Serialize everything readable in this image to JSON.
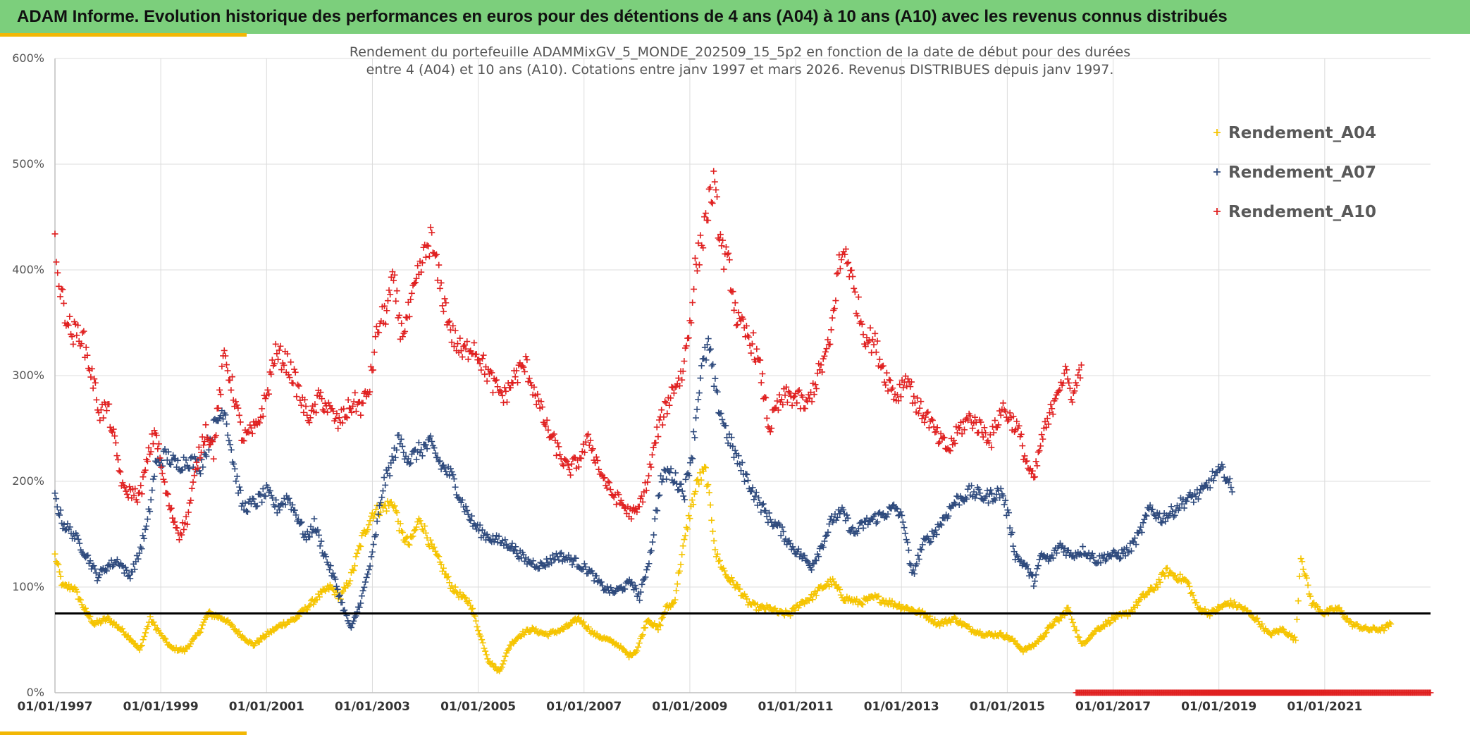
{
  "header": {
    "title": "ADAM Informe. Evolution historique des performances en euros pour des détentions de 4 ans (A04) à 10 ans (A10) avec les revenus connus distribués"
  },
  "colors": {
    "banner": "#7ccf7c",
    "accent": "#f2b705",
    "A04": "#f5c400",
    "A07": "#2e4a7d",
    "A10": "#e02020",
    "reference": "#000000",
    "grid": "#dcdcdc"
  },
  "chart_data": {
    "type": "scatter",
    "title_lines": [
      "Rendement du portefeuille ADAMMixGV_5_MONDE_202509_15_5p2  en fonction de la date de début pour des durées",
      "entre 4 (A04) et 10 ans (A10). Cotations entre janv 1997 et mars 2026. Revenus DISTRIBUES depuis janv 1997."
    ],
    "xlabel": "",
    "ylabel": "",
    "xlim": [
      1997.0,
      2023.0
    ],
    "ylim": [
      0,
      600
    ],
    "yticks": [
      0,
      100,
      200,
      300,
      400,
      500,
      600
    ],
    "ytick_labels": [
      "0%",
      "100%",
      "200%",
      "300%",
      "400%",
      "500%",
      "600%"
    ],
    "xticks": [
      1997,
      1999,
      2001,
      2003,
      2005,
      2007,
      2009,
      2011,
      2013,
      2015,
      2017,
      2019,
      2021
    ],
    "xtick_labels": [
      "01/01/1997",
      "01/01/1999",
      "01/01/2001",
      "01/01/2003",
      "01/01/2005",
      "01/01/2007",
      "01/01/2009",
      "01/01/2011",
      "01/01/2013",
      "01/01/2015",
      "01/01/2017",
      "01/01/2019",
      "01/01/2021"
    ],
    "grid": true,
    "legend_position": "top-right",
    "reference_line": {
      "y": 75
    },
    "series": [
      {
        "name": "Rendement_A04",
        "x": [
          1997.0,
          1997.15,
          1997.35,
          1997.6,
          1997.75,
          1998.0,
          1998.25,
          1998.45,
          1998.6,
          1998.8,
          1999.0,
          1999.2,
          1999.45,
          1999.7,
          1999.9,
          2000.2,
          2000.5,
          2000.75,
          2001.0,
          2001.3,
          2001.55,
          2001.75,
          2002.0,
          2002.2,
          2002.4,
          2002.6,
          2002.8,
          2003.0,
          2003.2,
          2003.4,
          2003.55,
          2003.7,
          2003.9,
          2004.1,
          2004.3,
          2004.5,
          2004.7,
          2004.85,
          2005.0,
          2005.2,
          2005.4,
          2005.6,
          2005.8,
          2006.0,
          2006.3,
          2006.6,
          2006.9,
          2007.2,
          2007.45,
          2007.65,
          2007.85,
          2008.0,
          2008.2,
          2008.4,
          2008.55,
          2008.7,
          2008.85,
          2009.0,
          2009.15,
          2009.3,
          2009.5,
          2009.7,
          2009.9,
          2010.1,
          2010.3,
          2010.5,
          2010.7,
          2010.9,
          2011.1,
          2011.3,
          2011.5,
          2011.7,
          2011.9,
          2012.2,
          2012.5,
          2012.8,
          2013.1,
          2013.4,
          2013.7,
          2014.0,
          2014.3,
          2014.6,
          2014.9,
          2015.1,
          2015.3,
          2015.5,
          2015.7,
          2015.85,
          2016.0,
          2016.15,
          2016.4,
          2016.7,
          2017.0,
          2017.3,
          2017.55,
          2017.8,
          2018.0,
          2018.2,
          2018.4,
          2018.6,
          2018.85,
          2019.0,
          2019.2,
          2019.45,
          2019.7,
          2019.95,
          2020.2,
          2020.45,
          2020.55,
          2020.75,
          2021.0,
          2021.25,
          2021.5,
          2021.8,
          2022.1,
          2022.25
        ],
        "values": [
          130,
          100,
          100,
          75,
          65,
          70,
          60,
          50,
          40,
          70,
          55,
          42,
          40,
          55,
          75,
          70,
          55,
          45,
          55,
          65,
          70,
          80,
          92,
          100,
          90,
          110,
          145,
          170,
          175,
          180,
          150,
          140,
          165,
          140,
          120,
          100,
          90,
          85,
          60,
          30,
          20,
          45,
          55,
          60,
          55,
          60,
          70,
          55,
          50,
          45,
          35,
          40,
          70,
          60,
          80,
          85,
          130,
          170,
          200,
          210,
          130,
          110,
          100,
          85,
          80,
          80,
          75,
          75,
          85,
          90,
          100,
          105,
          90,
          85,
          90,
          85,
          80,
          75,
          65,
          70,
          60,
          55,
          55,
          50,
          40,
          45,
          55,
          65,
          70,
          80,
          45,
          60,
          70,
          75,
          90,
          100,
          115,
          110,
          105,
          80,
          75,
          80,
          85,
          80,
          70,
          55,
          60,
          50,
          130,
          85,
          75,
          80,
          65,
          60,
          60,
          65
        ]
      },
      {
        "name": "Rendement_A07",
        "x": [
          1997.0,
          1997.15,
          1997.35,
          1997.6,
          1997.8,
          1998.0,
          1998.2,
          1998.4,
          1998.55,
          1998.75,
          1998.9,
          1999.1,
          1999.3,
          1999.5,
          1999.75,
          2000.0,
          2000.2,
          2000.4,
          2000.55,
          2000.8,
          2001.0,
          2001.2,
          2001.4,
          2001.6,
          2001.75,
          2001.9,
          2002.1,
          2002.3,
          2002.45,
          2002.6,
          2002.8,
          2003.0,
          2003.2,
          2003.35,
          2003.5,
          2003.7,
          2003.9,
          2004.1,
          2004.3,
          2004.5,
          2004.7,
          2004.9,
          2005.1,
          2005.3,
          2005.6,
          2005.9,
          2006.2,
          2006.5,
          2006.8,
          2007.1,
          2007.35,
          2007.55,
          2007.75,
          2007.9,
          2008.05,
          2008.25,
          2008.45,
          2008.6,
          2008.75,
          2008.9,
          2009.05,
          2009.2,
          2009.35,
          2009.5,
          2009.7,
          2009.9,
          2010.1,
          2010.3,
          2010.5,
          2010.7,
          2010.9,
          2011.1,
          2011.3,
          2011.5,
          2011.7,
          2011.9,
          2012.1,
          2012.3,
          2012.5,
          2012.7,
          2012.9,
          2013.05,
          2013.2,
          2013.4,
          2013.6,
          2013.8,
          2014.0,
          2014.3,
          2014.6,
          2014.9,
          2015.05,
          2015.15,
          2015.35,
          2015.5,
          2015.65,
          2015.8,
          2016.0,
          2016.2,
          2016.45,
          2016.7,
          2016.9,
          2017.1,
          2017.3,
          2017.5,
          2017.7,
          2017.9,
          2018.1,
          2018.3,
          2018.5,
          2018.7,
          2018.9,
          2019.1,
          2019.25
        ],
        "values": [
          185,
          160,
          150,
          130,
          110,
          120,
          125,
          110,
          125,
          160,
          215,
          225,
          215,
          220,
          215,
          250,
          270,
          210,
          175,
          180,
          190,
          175,
          185,
          165,
          145,
          160,
          130,
          105,
          80,
          60,
          90,
          130,
          195,
          215,
          240,
          220,
          230,
          235,
          215,
          205,
          180,
          160,
          150,
          145,
          140,
          125,
          120,
          130,
          125,
          115,
          100,
          95,
          100,
          105,
          90,
          130,
          200,
          210,
          200,
          190,
          230,
          300,
          330,
          280,
          245,
          220,
          200,
          180,
          165,
          155,
          140,
          130,
          120,
          140,
          165,
          170,
          150,
          160,
          165,
          170,
          175,
          160,
          110,
          140,
          150,
          165,
          180,
          190,
          185,
          190,
          160,
          130,
          120,
          105,
          130,
          125,
          140,
          130,
          135,
          125,
          130,
          130,
          135,
          150,
          175,
          165,
          170,
          180,
          185,
          190,
          205,
          210,
          190
        ]
      },
      {
        "name": "Rendement_A10",
        "x": [
          1997.0,
          1997.1,
          1997.3,
          1997.5,
          1997.7,
          1997.85,
          1998.0,
          1998.15,
          1998.3,
          1998.45,
          1998.6,
          1998.75,
          1998.9,
          1999.05,
          1999.2,
          1999.35,
          1999.5,
          1999.7,
          1999.85,
          2000.0,
          2000.2,
          2000.35,
          2000.55,
          2000.8,
          2001.0,
          2001.15,
          2001.35,
          2001.5,
          2001.7,
          2001.85,
          2002.0,
          2002.15,
          2002.35,
          2002.5,
          2002.65,
          2002.8,
          2002.95,
          2003.1,
          2003.25,
          2003.4,
          2003.55,
          2003.7,
          2003.9,
          2004.1,
          2004.3,
          2004.5,
          2004.7,
          2004.9,
          2005.1,
          2005.3,
          2005.5,
          2005.7,
          2005.9,
          2006.1,
          2006.3,
          2006.5,
          2006.7,
          2006.9,
          2007.1,
          2007.3,
          2007.5,
          2007.7,
          2007.85,
          2008.0,
          2008.2,
          2008.4,
          2008.55,
          2008.7,
          2008.85,
          2009.0,
          2009.1,
          2009.2,
          2009.3,
          2009.45,
          2009.6,
          2009.75,
          2009.9,
          2010.05,
          2010.2,
          2010.35,
          2010.5,
          2010.65,
          2010.8,
          2011.0,
          2011.2,
          2011.35,
          2011.5,
          2011.65,
          2011.8,
          2011.95,
          2012.1,
          2012.3,
          2012.5,
          2012.7,
          2012.9,
          2013.1,
          2013.3,
          2013.5,
          2013.7,
          2013.9,
          2014.1,
          2014.3,
          2014.5,
          2014.7,
          2014.9,
          2015.05,
          2015.2,
          2015.35,
          2015.5,
          2015.65,
          2015.8,
          2015.95,
          2016.1,
          2016.25,
          2016.4
        ],
        "values": [
          430,
          380,
          340,
          340,
          300,
          265,
          270,
          230,
          190,
          190,
          185,
          220,
          250,
          200,
          170,
          150,
          165,
          220,
          250,
          230,
          320,
          290,
          240,
          250,
          280,
          320,
          315,
          300,
          270,
          260,
          280,
          270,
          255,
          265,
          275,
          270,
          290,
          345,
          360,
          390,
          340,
          360,
          400,
          430,
          380,
          340,
          320,
          330,
          310,
          290,
          280,
          300,
          310,
          280,
          250,
          230,
          210,
          220,
          240,
          210,
          190,
          180,
          170,
          170,
          200,
          250,
          270,
          290,
          300,
          350,
          400,
          420,
          450,
          480,
          420,
          400,
          350,
          340,
          330,
          300,
          250,
          270,
          280,
          280,
          270,
          290,
          310,
          330,
          400,
          420,
          380,
          340,
          330,
          300,
          280,
          300,
          270,
          260,
          240,
          230,
          250,
          260,
          250,
          240,
          270,
          260,
          250,
          220,
          200,
          240,
          260,
          290,
          300,
          280,
          310
        ]
      }
    ],
    "zero_band": {
      "name": "Rendement_A10",
      "x_start": 2016.3,
      "x_end": 2023.0,
      "value": 0
    }
  }
}
